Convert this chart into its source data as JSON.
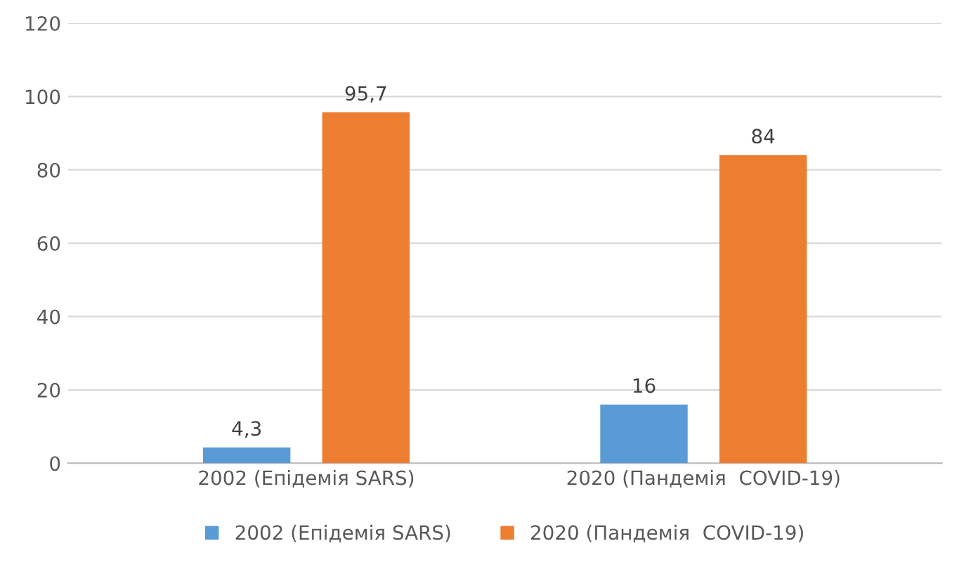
{
  "chart_data": {
    "type": "bar",
    "categories": [
      "2002 (Епідемія SARS)",
      "2020 (Пандемія  COVID-19)"
    ],
    "series": [
      {
        "name": "2002 (Епідемія SARS)",
        "color": "#5b9bd5",
        "values": [
          4.3,
          16
        ],
        "value_labels": [
          "4,3",
          "16"
        ]
      },
      {
        "name": "2020 (Пандемія  COVID-19)",
        "color": "#ed7d31",
        "values": [
          95.7,
          84
        ],
        "value_labels": [
          "95,7",
          "84"
        ]
      }
    ],
    "ylim": [
      0,
      120
    ],
    "yticks": [
      0,
      20,
      40,
      60,
      80,
      100,
      120
    ],
    "grid": "y",
    "legend": "bottom"
  }
}
